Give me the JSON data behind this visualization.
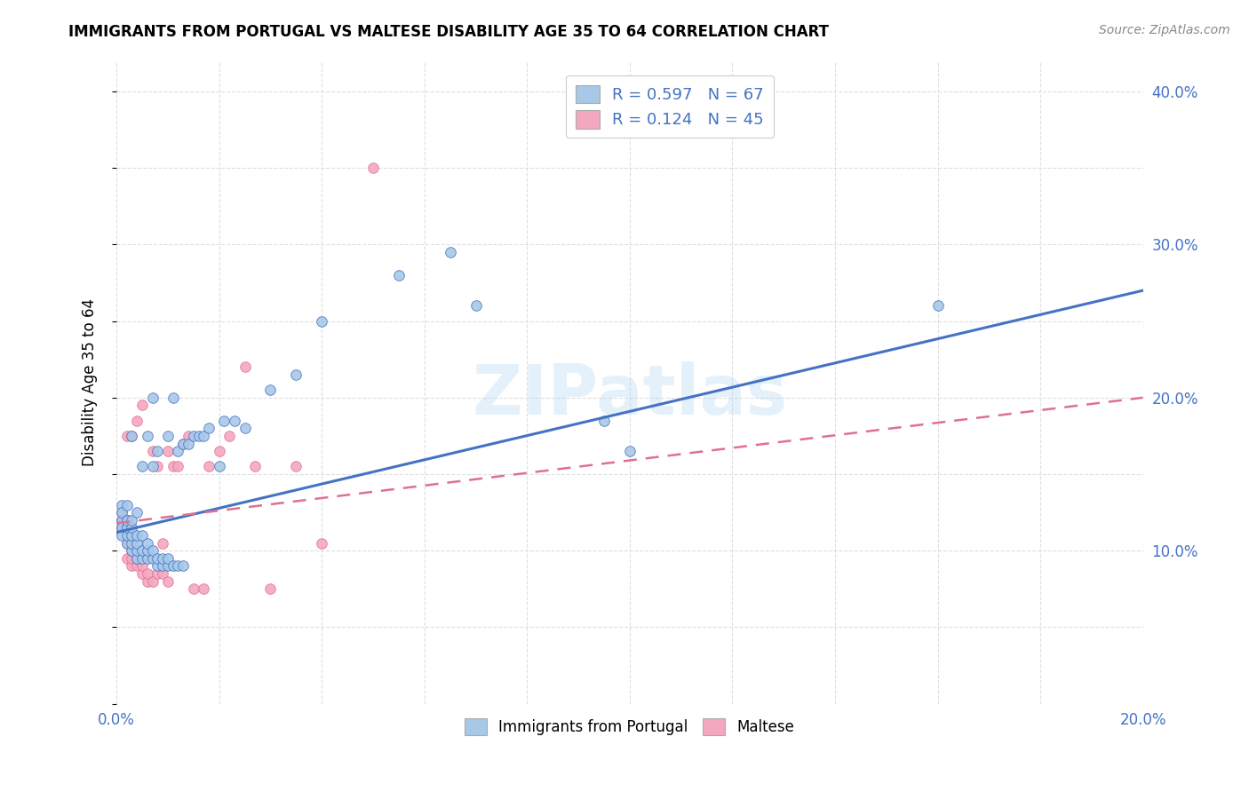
{
  "title": "IMMIGRANTS FROM PORTUGAL VS MALTESE DISABILITY AGE 35 TO 64 CORRELATION CHART",
  "source": "Source: ZipAtlas.com",
  "ylabel": "Disability Age 35 to 64",
  "xlim": [
    0.0,
    0.2
  ],
  "ylim": [
    0.0,
    0.42
  ],
  "xticks": [
    0.0,
    0.02,
    0.04,
    0.06,
    0.08,
    0.1,
    0.12,
    0.14,
    0.16,
    0.18,
    0.2
  ],
  "yticks": [
    0.0,
    0.05,
    0.1,
    0.15,
    0.2,
    0.25,
    0.3,
    0.35,
    0.4
  ],
  "blue_color": "#a8c8e8",
  "pink_color": "#f4a8c0",
  "blue_line_color": "#4472c4",
  "pink_line_color": "#e07090",
  "legend_R1": "0.597",
  "legend_N1": "67",
  "legend_R2": "0.124",
  "legend_N2": "45",
  "legend_label1": "Immigrants from Portugal",
  "legend_label2": "Maltese",
  "watermark": "ZIPatlas",
  "blue_scatter_x": [
    0.001,
    0.001,
    0.001,
    0.001,
    0.001,
    0.002,
    0.002,
    0.002,
    0.002,
    0.002,
    0.002,
    0.002,
    0.003,
    0.003,
    0.003,
    0.003,
    0.003,
    0.003,
    0.004,
    0.004,
    0.004,
    0.004,
    0.004,
    0.005,
    0.005,
    0.005,
    0.005,
    0.006,
    0.006,
    0.006,
    0.006,
    0.007,
    0.007,
    0.007,
    0.007,
    0.008,
    0.008,
    0.008,
    0.009,
    0.009,
    0.01,
    0.01,
    0.01,
    0.011,
    0.011,
    0.012,
    0.012,
    0.013,
    0.013,
    0.014,
    0.015,
    0.016,
    0.017,
    0.018,
    0.02,
    0.021,
    0.023,
    0.025,
    0.03,
    0.035,
    0.04,
    0.055,
    0.065,
    0.07,
    0.095,
    0.1,
    0.16
  ],
  "blue_scatter_y": [
    0.13,
    0.12,
    0.115,
    0.11,
    0.125,
    0.115,
    0.12,
    0.13,
    0.105,
    0.11,
    0.115,
    0.12,
    0.1,
    0.105,
    0.11,
    0.115,
    0.12,
    0.175,
    0.095,
    0.1,
    0.105,
    0.11,
    0.125,
    0.095,
    0.1,
    0.11,
    0.155,
    0.095,
    0.1,
    0.105,
    0.175,
    0.095,
    0.1,
    0.155,
    0.2,
    0.09,
    0.095,
    0.165,
    0.09,
    0.095,
    0.09,
    0.095,
    0.175,
    0.09,
    0.2,
    0.09,
    0.165,
    0.09,
    0.17,
    0.17,
    0.175,
    0.175,
    0.175,
    0.18,
    0.155,
    0.185,
    0.185,
    0.18,
    0.205,
    0.215,
    0.25,
    0.28,
    0.295,
    0.26,
    0.185,
    0.165,
    0.26
  ],
  "pink_scatter_x": [
    0.001,
    0.001,
    0.001,
    0.001,
    0.001,
    0.002,
    0.002,
    0.002,
    0.002,
    0.002,
    0.003,
    0.003,
    0.003,
    0.003,
    0.004,
    0.004,
    0.004,
    0.005,
    0.005,
    0.005,
    0.006,
    0.006,
    0.007,
    0.007,
    0.008,
    0.008,
    0.009,
    0.009,
    0.01,
    0.01,
    0.011,
    0.012,
    0.013,
    0.014,
    0.015,
    0.017,
    0.018,
    0.02,
    0.022,
    0.025,
    0.027,
    0.03,
    0.035,
    0.04,
    0.05
  ],
  "pink_scatter_y": [
    0.115,
    0.12,
    0.125,
    0.115,
    0.12,
    0.095,
    0.105,
    0.115,
    0.12,
    0.175,
    0.09,
    0.095,
    0.1,
    0.175,
    0.09,
    0.095,
    0.185,
    0.085,
    0.09,
    0.195,
    0.08,
    0.085,
    0.08,
    0.165,
    0.085,
    0.155,
    0.085,
    0.105,
    0.08,
    0.165,
    0.155,
    0.155,
    0.17,
    0.175,
    0.075,
    0.075,
    0.155,
    0.165,
    0.175,
    0.22,
    0.155,
    0.075,
    0.155,
    0.105,
    0.35
  ],
  "blue_line_x0": 0.0,
  "blue_line_y0": 0.112,
  "blue_line_x1": 0.2,
  "blue_line_y1": 0.27,
  "pink_line_x0": 0.0,
  "pink_line_y0": 0.118,
  "pink_line_x1": 0.2,
  "pink_line_y1": 0.2
}
